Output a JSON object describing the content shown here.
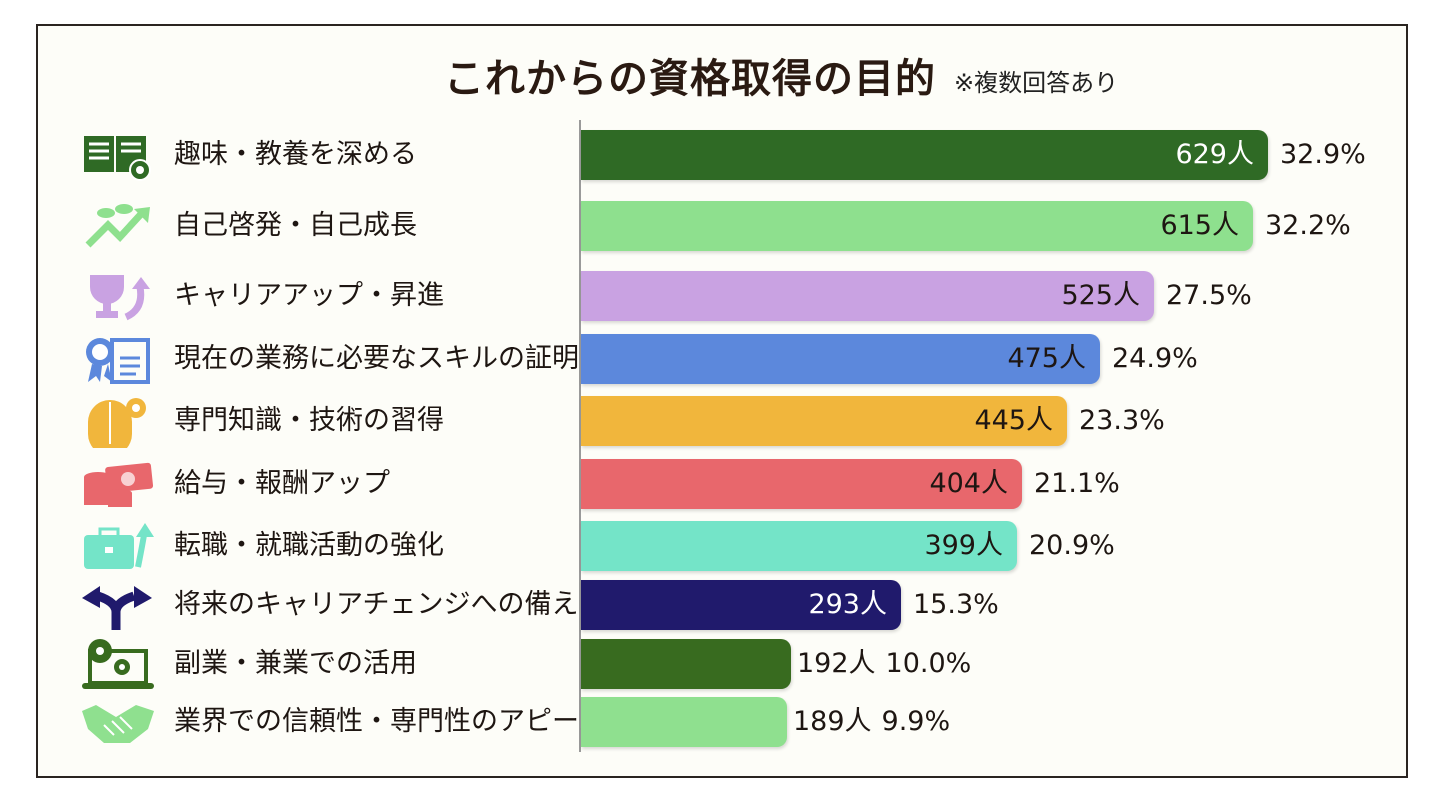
{
  "chart_data": {
    "type": "bar",
    "orientation": "horizontal",
    "title": "これからの資格取得の目的",
    "subtitle": "※複数回答あり",
    "unit": "人",
    "categories": [
      "趣味・教養を深める",
      "自己啓発・自己成長",
      "キャリアアップ・昇進",
      "現在の業務に必要なスキルの証明",
      "専門知識・技術の習得",
      "給与・報酬アップ",
      "転職・就職活動の強化",
      "将来のキャリアチェンジへの備え",
      "副業・兼業での活用",
      "業界での信頼性・専門性のアピール"
    ],
    "values": [
      629,
      615,
      525,
      475,
      445,
      404,
      399,
      293,
      192,
      189
    ],
    "count_labels": [
      "629人",
      "615人",
      "525人",
      "475人",
      "445人",
      "404人",
      "399人",
      "293人",
      "192人",
      "189人"
    ],
    "percent_labels": [
      "32.9%",
      "32.2%",
      "27.5%",
      "24.9%",
      "23.3%",
      "21.1%",
      "20.9%",
      "15.3%",
      "10.0%",
      "9.9%"
    ],
    "colors": [
      "#2f6a25",
      "#8ee08e",
      "#c9a2e2",
      "#5c88dc",
      "#f1b63c",
      "#e8676c",
      "#74e4c8",
      "#201a6c",
      "#386b1f",
      "#8fe08f"
    ],
    "icons": [
      "book-gear-icon",
      "sprout-growth-arrow-icon",
      "trophy-arrow-icon",
      "certificate-icon",
      "brain-gear-icon",
      "money-coins-icon",
      "briefcase-arrow-icon",
      "split-arrow-icon",
      "laptop-gears-icon",
      "handshake-icon"
    ],
    "grid": false,
    "legend": "none"
  }
}
